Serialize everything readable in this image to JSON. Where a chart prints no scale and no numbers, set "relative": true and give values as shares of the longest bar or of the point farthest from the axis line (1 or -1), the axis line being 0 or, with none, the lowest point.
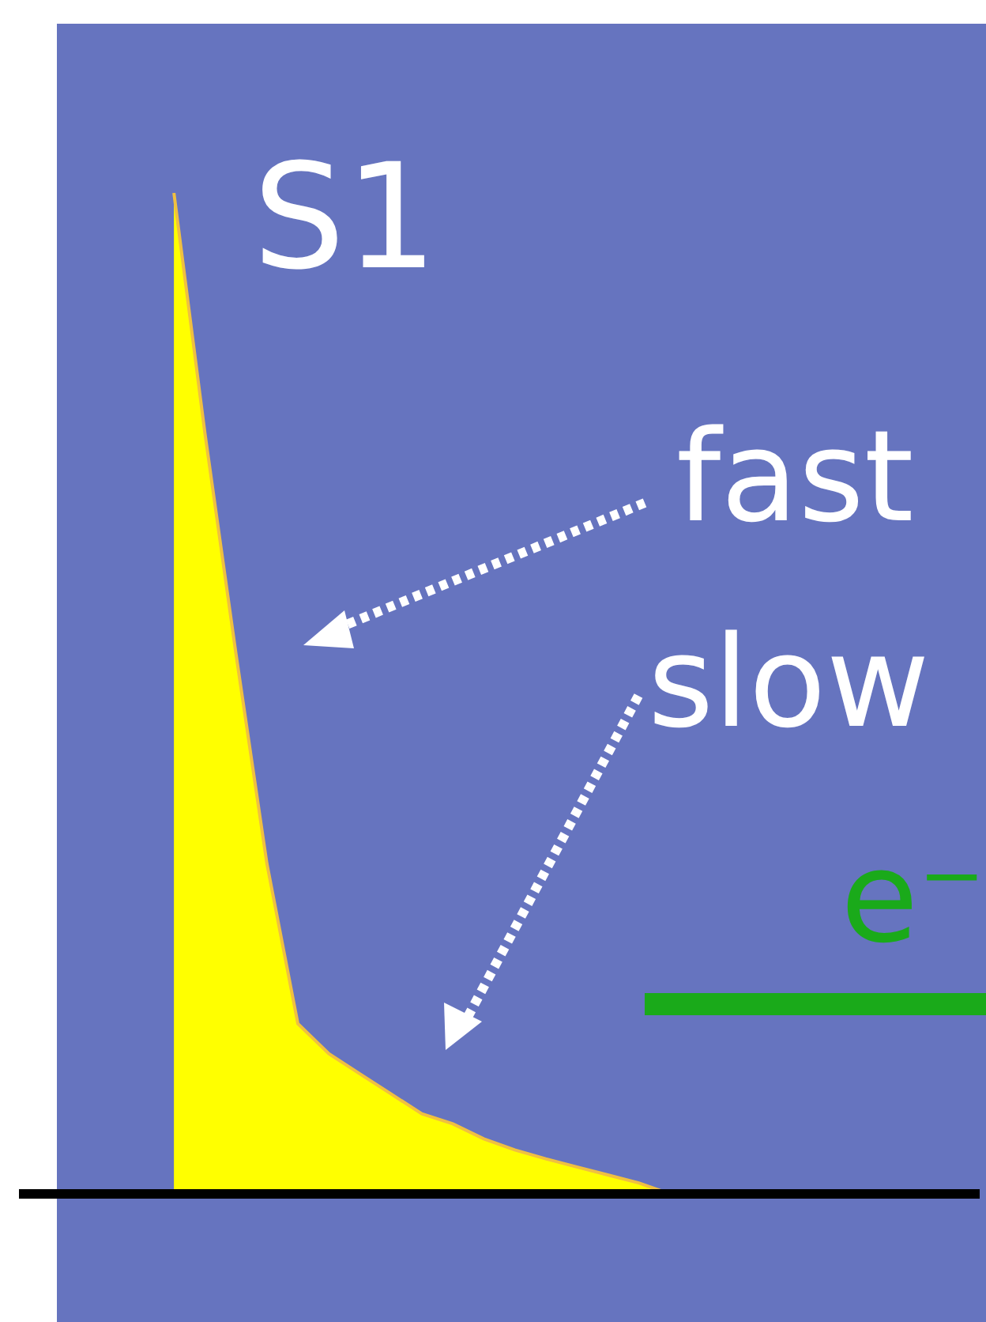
{
  "chart_data": {
    "type": "area",
    "relative": true,
    "title": "S1",
    "categories": [
      null,
      null,
      null,
      null,
      null,
      null,
      null,
      null,
      null,
      null,
      null,
      null,
      null,
      null,
      null,
      null,
      null,
      null,
      null,
      null,
      null,
      null,
      null,
      null,
      null,
      null,
      null,
      null,
      null,
      null,
      null,
      null
    ],
    "values": [
      null,
      null,
      null,
      null,
      null,
      1,
      0.76,
      0.54,
      0.33,
      0.17,
      0.14,
      0.12,
      0.1,
      0.08,
      0.07,
      0.055,
      0.044,
      0.035,
      0.027,
      0.019,
      0.011,
      0,
      null,
      null,
      null,
      null,
      null,
      null,
      null,
      null,
      null,
      null
    ],
    "color": "#ffff00",
    "annotations": [
      "fast",
      "slow",
      "e⁻"
    ]
  }
}
